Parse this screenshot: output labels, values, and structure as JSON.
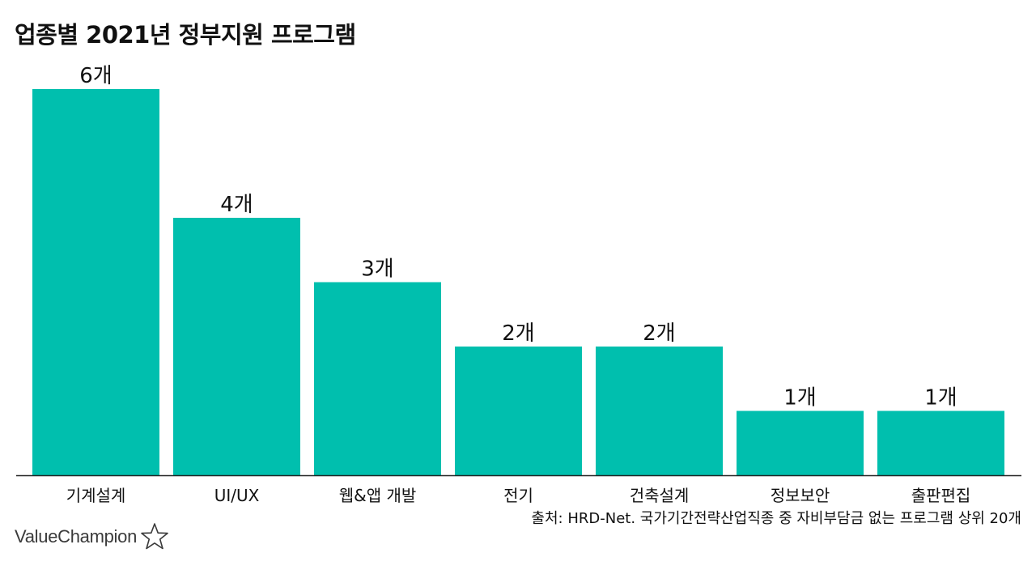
{
  "title": "업종별 2021년 정부지원 프로그램",
  "source": "출처: HRD-Net. 국가기간전략산업직종 중 자비부담금 없는 프로그램 상위 20개",
  "brand": {
    "name": "ValueChampion",
    "icon": "star-outline-icon"
  },
  "colors": {
    "bar": "#00BFAE",
    "axis": "#222222",
    "text": "#111111"
  },
  "chart_data": {
    "type": "bar",
    "title": "업종별 2021년 정부지원 프로그램",
    "xlabel": "",
    "ylabel": "",
    "categories": [
      "기계설계",
      "UI/UX",
      "웹&앱 개발",
      "전기",
      "건축설계",
      "정보보안",
      "출판편집"
    ],
    "values": [
      6,
      4,
      3,
      2,
      2,
      1,
      1
    ],
    "value_labels": [
      "6개",
      "4개",
      "3개",
      "2개",
      "2개",
      "1개",
      "1개"
    ],
    "ylim": [
      0,
      6
    ],
    "grid": false,
    "legend": "none"
  }
}
